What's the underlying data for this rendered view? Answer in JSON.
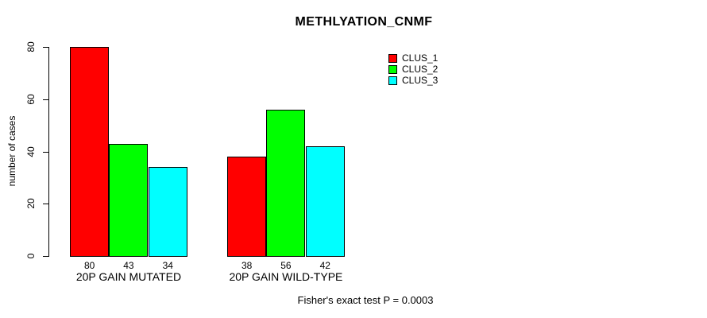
{
  "chart_data": {
    "type": "bar",
    "title": "METHLYATION_CNMF",
    "ylabel": "number of cases",
    "xlabel": "",
    "ylim": [
      0,
      80
    ],
    "yticks": [
      0,
      20,
      40,
      60,
      80
    ],
    "grid": false,
    "legend_position": "top-right",
    "categories": [
      "20P GAIN MUTATED",
      "20P GAIN WILD-TYPE"
    ],
    "series": [
      {
        "name": "CLUS_1",
        "color": "#ff0000",
        "values": [
          80,
          38
        ]
      },
      {
        "name": "CLUS_2",
        "color": "#00ff00",
        "values": [
          43,
          56
        ]
      },
      {
        "name": "CLUS_3",
        "color": "#00ffff",
        "values": [
          34,
          42
        ]
      }
    ],
    "bar_value_labels": [
      [
        80,
        43,
        34
      ],
      [
        38,
        56,
        42
      ]
    ],
    "annotation": "Fisher's exact test P = 0.0003"
  },
  "colors": {
    "bar_border": "#000000",
    "axis": "#000000",
    "background": "#ffffff"
  }
}
